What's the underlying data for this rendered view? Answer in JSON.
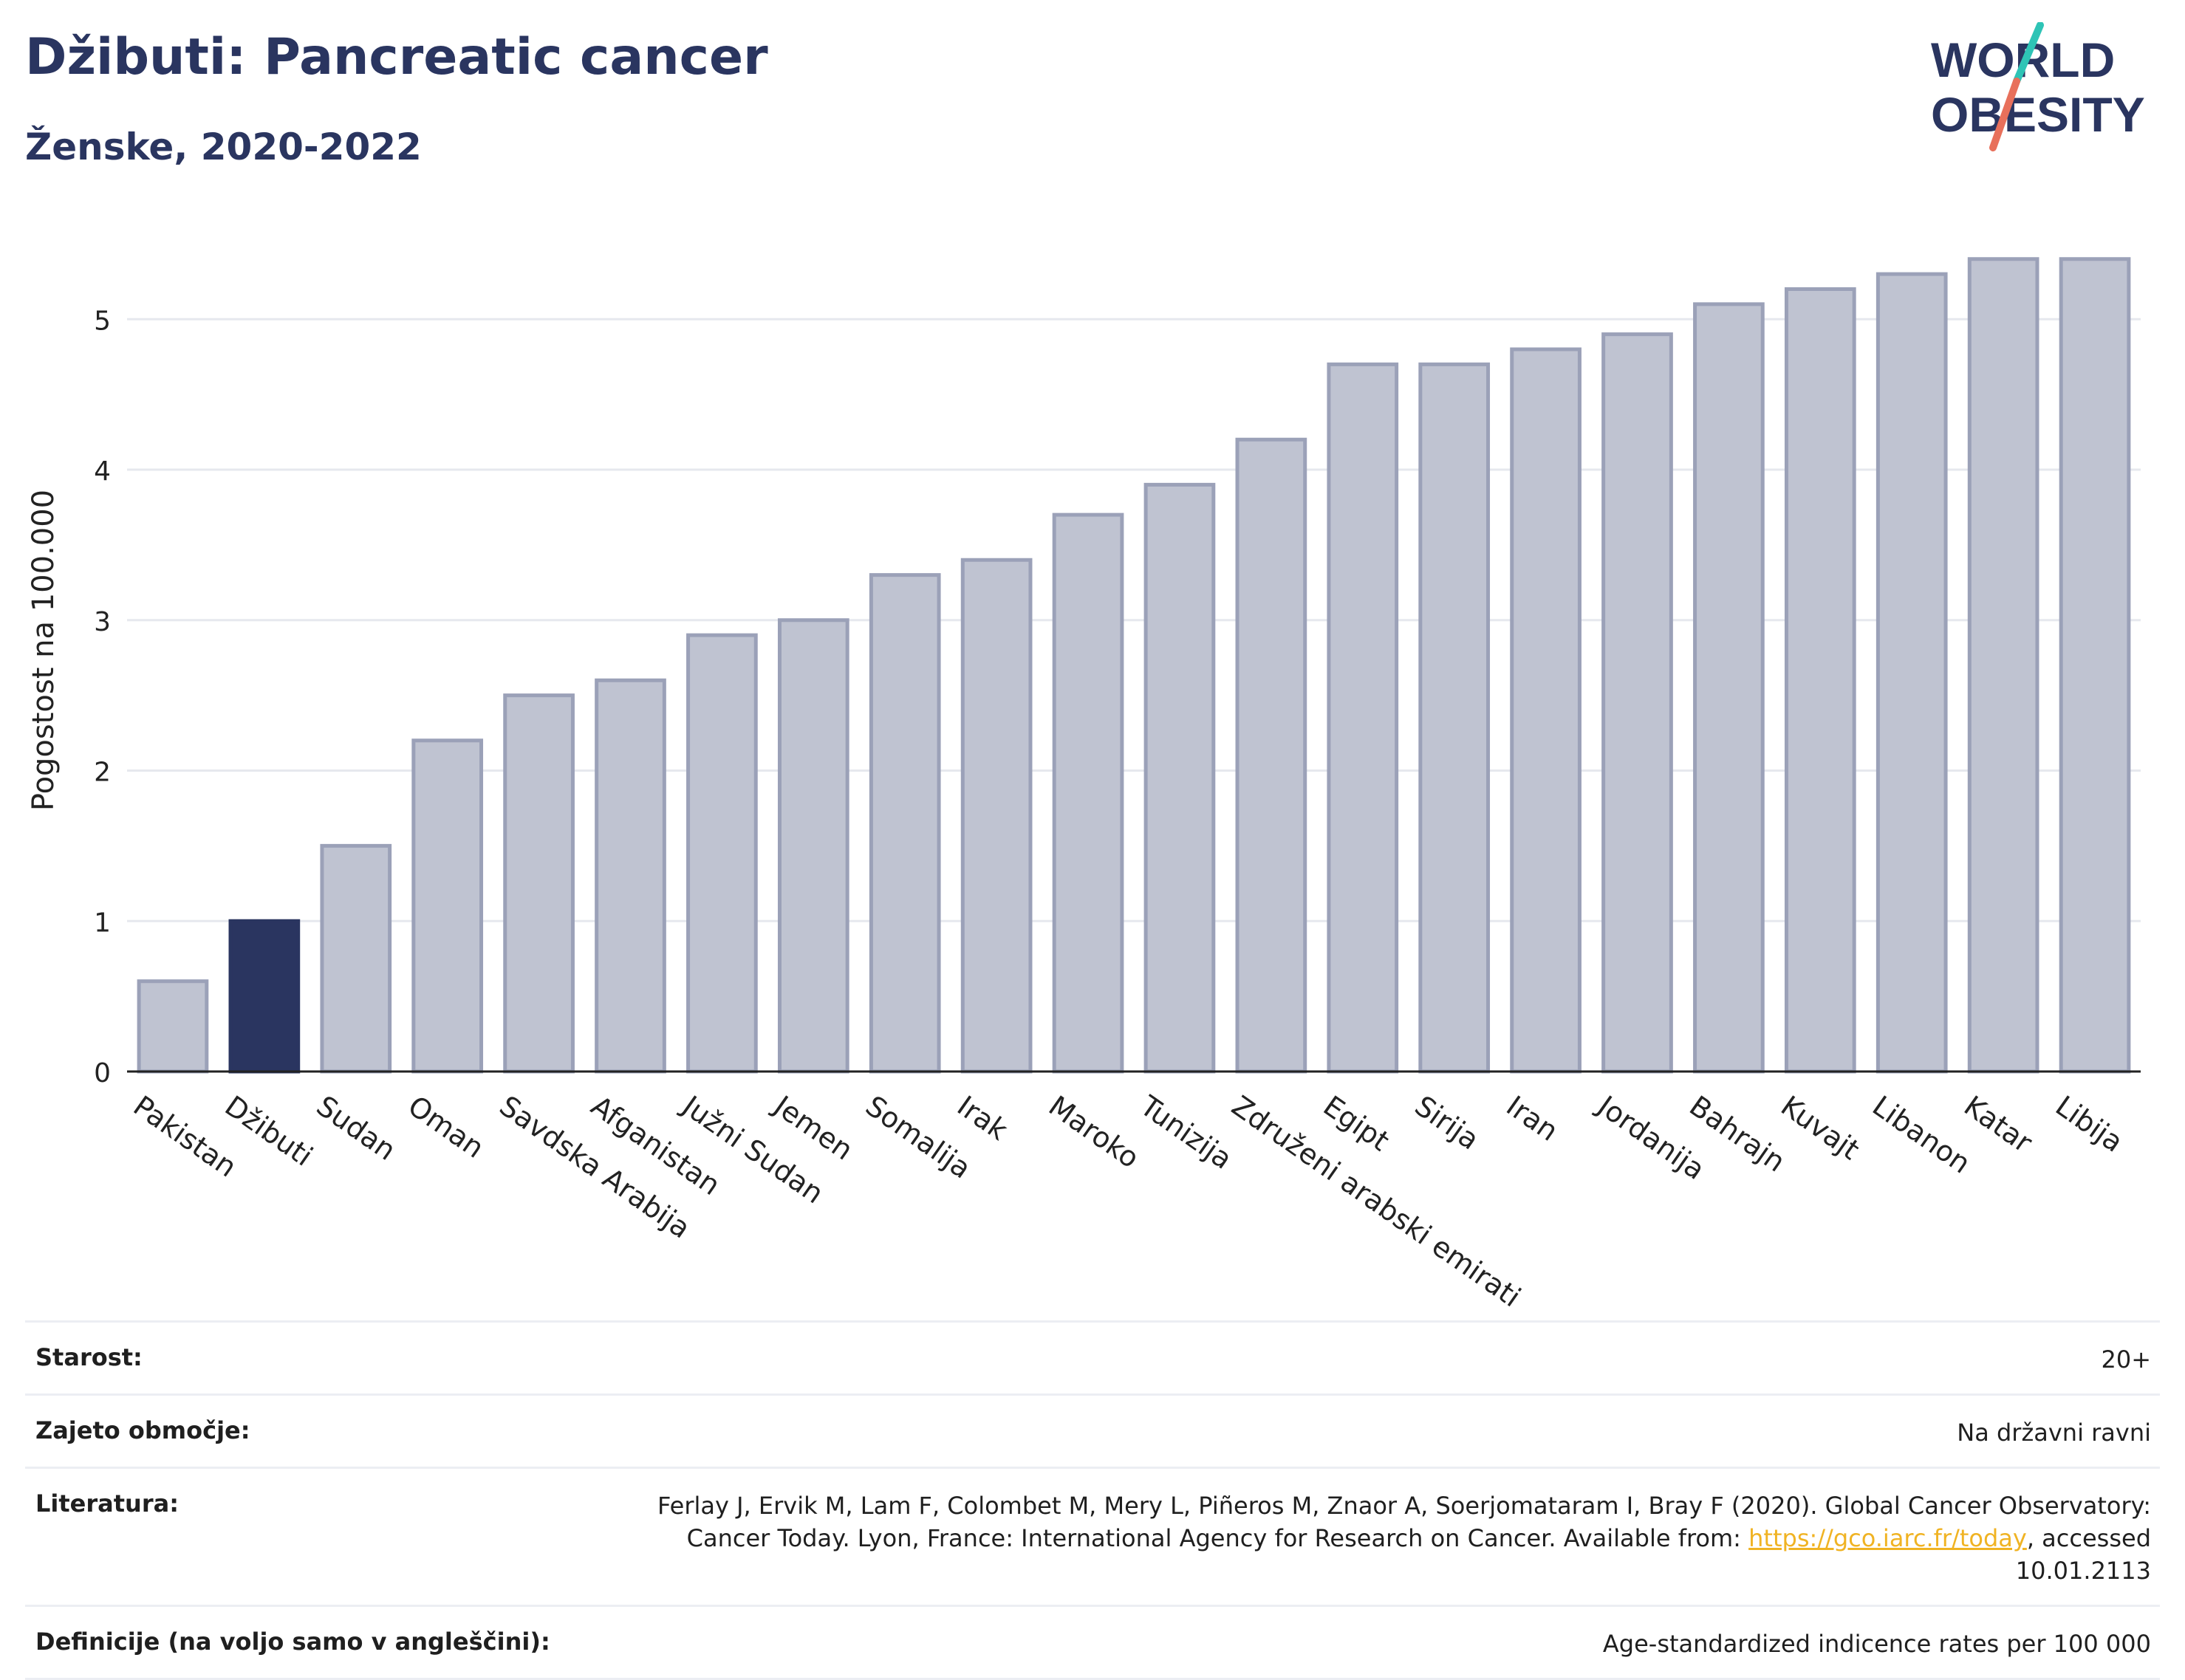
{
  "header": {
    "title": "Džibuti: Pancreatic cancer",
    "subtitle": "Ženske, 2020-2022"
  },
  "logo": {
    "line1": "WORLD",
    "line2": "OBESITY",
    "accent_colors": [
      "#2ec4b6",
      "#e8705b"
    ]
  },
  "colors": {
    "highlight": "#2a3560",
    "bar": "#bfc3d1",
    "bar_stroke": "#9ba1b8",
    "grid": "#e6e8ee"
  },
  "chart_data": {
    "type": "bar",
    "ylabel": "Pogostost na 100.000",
    "ylim": [
      0,
      5.6
    ],
    "yticks": [
      0,
      1,
      2,
      3,
      4,
      5
    ],
    "grid": true,
    "highlight": "Džibuti",
    "categories": [
      "Pakistan",
      "Džibuti",
      "Sudan",
      "Oman",
      "Savdska Arabija",
      "Afganistan",
      "Južni Sudan",
      "Jemen",
      "Somalija",
      "Irak",
      "Maroko",
      "Tunizija",
      "Združeni arabski emirati",
      "Egipt",
      "Sirija",
      "Iran",
      "Jordanija",
      "Bahrajn",
      "Kuvajt",
      "Libanon",
      "Katar",
      "Libija"
    ],
    "values": [
      0.6,
      1.0,
      1.5,
      2.2,
      2.5,
      2.6,
      2.9,
      3.0,
      3.3,
      3.4,
      3.7,
      3.9,
      4.2,
      4.7,
      4.7,
      4.8,
      4.9,
      5.1,
      5.2,
      5.3,
      5.4,
      5.4
    ]
  },
  "meta": {
    "rows": [
      {
        "label": "Starost:",
        "value": "20+"
      },
      {
        "label": "Zajeto območje:",
        "value": "Na državni ravni"
      },
      {
        "label": "Literatura:",
        "value_before": "Ferlay J, Ervik M, Lam F, Colombet M, Mery L, Piñeros M, Znaor A, Soerjomataram I, Bray F (2020). Global Cancer Observatory: Cancer Today. Lyon, France: International Agency for Research on Cancer. Available from: ",
        "link": "https://gco.iarc.fr/today",
        "value_after": ", accessed 10.01.2113"
      },
      {
        "label": "Definicije (na voljo samo v angleščini):",
        "value": "Age-standardized indicence rates per 100 000"
      }
    ]
  }
}
